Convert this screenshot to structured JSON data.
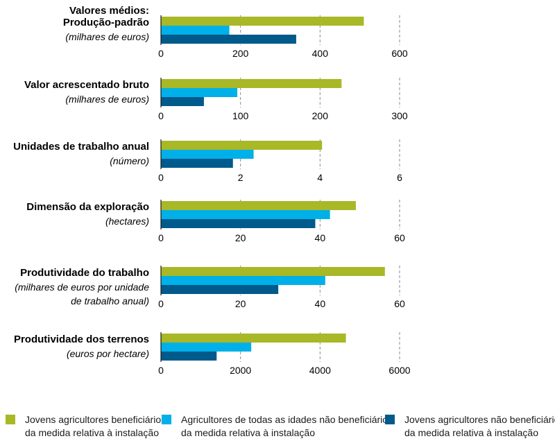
{
  "chart_data": {
    "type": "bar",
    "orientation": "horizontal",
    "header": "Valores médios:",
    "colors": [
      "#a8b826",
      "#00b0e8",
      "#005a8b"
    ],
    "legend": [
      [
        "Jovens agricultores beneficiários",
        "da medida relativa à instalação"
      ],
      [
        "Agricultores de todas as idades não beneficiários",
        "da medida relativa à instalação"
      ],
      [
        "Jovens agricultores não beneficiários",
        "da medida relativa à instalação"
      ]
    ],
    "legend_position": "bottom",
    "grid": "dashed vertical",
    "panels": [
      {
        "label": "Produção-padrão",
        "unit": [
          "(milhares de euros)"
        ],
        "values": [
          510,
          172,
          340
        ],
        "xlim": [
          0,
          600
        ],
        "ticks": [
          "0",
          "200",
          "400",
          "600"
        ]
      },
      {
        "label": "Valor acrescentado bruto",
        "unit": [
          "(milhares de euros)"
        ],
        "values": [
          227,
          96,
          54
        ],
        "xlim": [
          0,
          300
        ],
        "ticks": [
          "0",
          "100",
          "200",
          "300"
        ]
      },
      {
        "label": "Unidades de trabalho anual",
        "unit": [
          "(número)"
        ],
        "values": [
          4.05,
          2.33,
          1.81
        ],
        "xlim": [
          0,
          6
        ],
        "ticks": [
          "0",
          "2",
          "4",
          "6"
        ]
      },
      {
        "label": "Dimensão da exploração",
        "unit": [
          "(hectares)"
        ],
        "values": [
          49,
          42.5,
          38.8
        ],
        "xlim": [
          0,
          60
        ],
        "ticks": [
          "0",
          "20",
          "40",
          "60"
        ]
      },
      {
        "label": "Produtividade do trabalho",
        "unit": [
          "(milhares de euros por unidade",
          "de trabalho anual)"
        ],
        "values": [
          56.3,
          41.3,
          29.5
        ],
        "xlim": [
          0,
          60
        ],
        "ticks": [
          "0",
          "20",
          "40",
          "60"
        ]
      },
      {
        "label": "Produtividade dos terrenos",
        "unit": [
          "(euros por hectare)"
        ],
        "values": [
          4650,
          2270,
          1400
        ],
        "xlim": [
          0,
          6000
        ],
        "ticks": [
          "0",
          "2000",
          "4000",
          "6000"
        ]
      }
    ]
  }
}
